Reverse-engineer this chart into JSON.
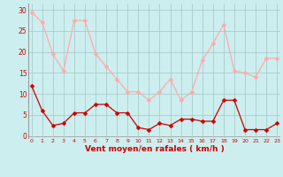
{
  "hours": [
    0,
    1,
    2,
    3,
    4,
    5,
    6,
    7,
    8,
    9,
    10,
    11,
    12,
    13,
    14,
    15,
    16,
    17,
    18,
    19,
    20,
    21,
    22,
    23
  ],
  "wind_avg": [
    12,
    6,
    2.5,
    3,
    5.5,
    5.5,
    7.5,
    7.5,
    5.5,
    5.5,
    2,
    1.5,
    3,
    2.5,
    4,
    4,
    3.5,
    3.5,
    8.5,
    8.5,
    1.5,
    1.5,
    1.5,
    3
  ],
  "wind_gust": [
    29.5,
    27,
    19.5,
    15.5,
    27.5,
    27.5,
    19.5,
    16.5,
    13.5,
    10.5,
    10.5,
    8.5,
    10.5,
    13.5,
    8.5,
    10.5,
    18,
    22,
    26.5,
    15.5,
    15,
    14,
    18.5,
    18.5
  ],
  "avg_color": "#cc0000",
  "gust_color": "#ffaaaa",
  "bg_color": "#cceeee",
  "grid_color": "#aacccc",
  "xlabel": "Vent moyen/en rafales ( km/h )",
  "yticks": [
    0,
    5,
    10,
    15,
    20,
    25,
    30
  ],
  "xticks": [
    0,
    1,
    2,
    3,
    4,
    5,
    6,
    7,
    8,
    9,
    10,
    11,
    12,
    13,
    14,
    15,
    16,
    17,
    18,
    19,
    20,
    21,
    22,
    23
  ],
  "ylim": [
    -0.5,
    31.5
  ],
  "xlim": [
    -0.3,
    23.3
  ],
  "markersize": 2.5,
  "linewidth": 0.9
}
